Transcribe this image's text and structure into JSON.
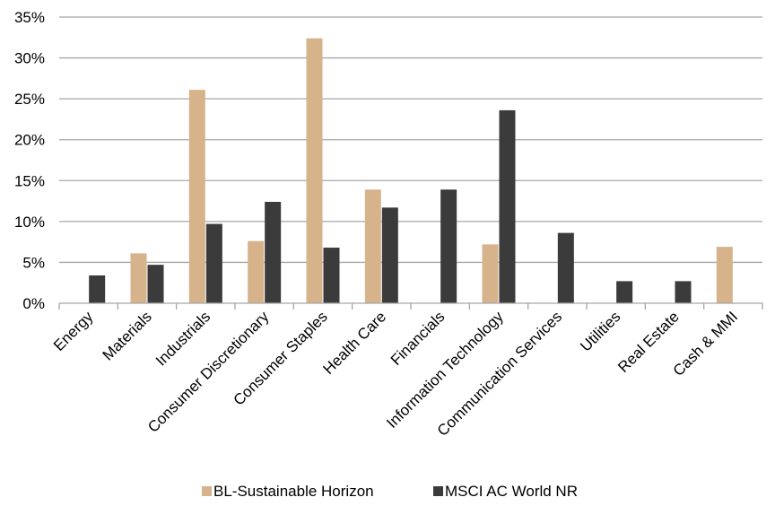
{
  "chart_data": {
    "type": "bar",
    "title": "",
    "xlabel": "",
    "ylabel": "",
    "ylim": [
      0,
      35
    ],
    "y_ticks": [
      0,
      5,
      10,
      15,
      20,
      25,
      30,
      35
    ],
    "y_tick_labels": [
      "0%",
      "5%",
      "10%",
      "15%",
      "20%",
      "25%",
      "30%",
      "35%"
    ],
    "grid": true,
    "legend_position": "bottom",
    "categories": [
      "Energy",
      "Materials",
      "Industrials",
      "Consumer Discretionary",
      "Consumer Staples",
      "Health Care",
      "Financials",
      "Information Technology",
      "Communication Services",
      "Utilities",
      "Real Estate",
      "Cash & MMI"
    ],
    "series": [
      {
        "name": "BL-Sustainable Horizon",
        "color": "#d6b38a",
        "values": [
          0,
          6.1,
          26.1,
          7.6,
          32.4,
          13.9,
          0,
          7.2,
          0,
          0,
          0,
          6.9
        ]
      },
      {
        "name": "MSCI AC World NR",
        "color": "#3b3b3b",
        "values": [
          3.4,
          4.7,
          9.7,
          12.4,
          6.8,
          11.7,
          13.9,
          23.6,
          8.6,
          2.7,
          2.7,
          0
        ]
      }
    ]
  }
}
